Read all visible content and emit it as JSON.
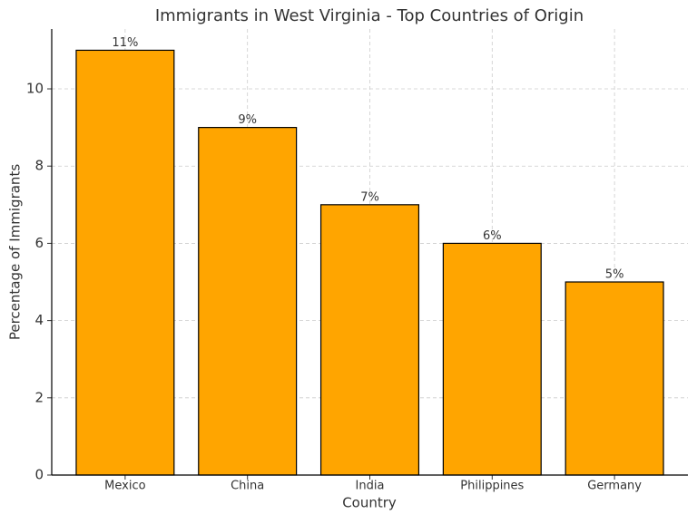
{
  "chart_data": {
    "type": "bar",
    "title": "Immigrants in West Virginia - Top Countries of Origin",
    "x_label": "Country",
    "y_label": "Percentage of Immigrants",
    "categories": [
      "Mexico",
      "China",
      "India",
      "Philippines",
      "Germany"
    ],
    "values": [
      11,
      9,
      7,
      6,
      5
    ],
    "value_labels": [
      "11%",
      "9%",
      "7%",
      "6%",
      "5%"
    ],
    "color": "#ffa500",
    "ylim": [
      0,
      11.55
    ],
    "yticks": [
      0,
      2,
      4,
      6,
      8,
      10
    ],
    "grid": true
  }
}
